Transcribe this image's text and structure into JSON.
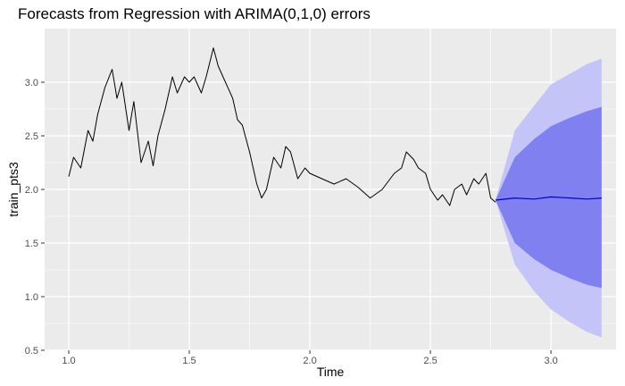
{
  "chart_data": {
    "type": "line",
    "title": "Forecasts from Regression with ARIMA(0,1,0) errors",
    "xlabel": "Time",
    "ylabel": "train_pts3",
    "xlim": [
      0.9,
      3.27
    ],
    "ylim": [
      0.5,
      3.5
    ],
    "x_ticks": [
      "1.0",
      "1.5",
      "2.0",
      "2.5",
      "3.0"
    ],
    "y_ticks": [
      "0.5",
      "1.0",
      "1.5",
      "2.0",
      "2.5",
      "3.0"
    ],
    "grid": true,
    "legend": "none",
    "colors": {
      "panel": "#ebebeb",
      "grid": "#ffffff",
      "observed": "#000000",
      "forecast": "#0000cc",
      "band_80": "#8080f0",
      "band_95": "#c4c4f8"
    },
    "series": [
      {
        "kind": "observed",
        "x": [
          1.0,
          1.02,
          1.05,
          1.08,
          1.1,
          1.12,
          1.15,
          1.18,
          1.2,
          1.22,
          1.25,
          1.27,
          1.3,
          1.33,
          1.35,
          1.37,
          1.4,
          1.43,
          1.45,
          1.48,
          1.5,
          1.52,
          1.55,
          1.57,
          1.6,
          1.62,
          1.65,
          1.68,
          1.7,
          1.72,
          1.75,
          1.78,
          1.8,
          1.82,
          1.85,
          1.88,
          1.9,
          1.92,
          1.95,
          1.98,
          2.0,
          2.05,
          2.1,
          2.15,
          2.2,
          2.25,
          2.3,
          2.35,
          2.38,
          2.4,
          2.43,
          2.45,
          2.48,
          2.5,
          2.53,
          2.55,
          2.58,
          2.6,
          2.63,
          2.65,
          2.68,
          2.7,
          2.73,
          2.75,
          2.77
        ],
        "y": [
          2.12,
          2.3,
          2.2,
          2.55,
          2.45,
          2.7,
          2.95,
          3.12,
          2.85,
          3.0,
          2.55,
          2.82,
          2.25,
          2.45,
          2.22,
          2.5,
          2.75,
          3.05,
          2.9,
          3.05,
          3.0,
          3.05,
          2.9,
          3.05,
          3.32,
          3.15,
          3.0,
          2.85,
          2.65,
          2.6,
          2.35,
          2.05,
          1.92,
          2.0,
          2.3,
          2.2,
          2.4,
          2.35,
          2.1,
          2.2,
          2.15,
          2.1,
          2.05,
          2.1,
          2.02,
          1.92,
          2.0,
          2.15,
          2.2,
          2.35,
          2.28,
          2.2,
          2.15,
          2.0,
          1.9,
          1.95,
          1.85,
          2.0,
          2.05,
          1.95,
          2.1,
          2.05,
          2.15,
          1.92,
          1.88
        ]
      },
      {
        "kind": "forecast",
        "x": [
          2.77,
          2.85,
          2.93,
          3.0,
          3.08,
          3.15,
          3.21
        ],
        "y": [
          1.9,
          1.92,
          1.91,
          1.93,
          1.92,
          1.91,
          1.92
        ],
        "lo80": [
          1.9,
          1.5,
          1.35,
          1.25,
          1.17,
          1.11,
          1.08
        ],
        "hi80": [
          1.9,
          2.3,
          2.47,
          2.59,
          2.67,
          2.73,
          2.77
        ],
        "lo95": [
          1.9,
          1.3,
          1.05,
          0.88,
          0.76,
          0.67,
          0.62
        ],
        "hi95": [
          1.9,
          2.55,
          2.78,
          2.98,
          3.08,
          3.17,
          3.22
        ]
      }
    ]
  }
}
